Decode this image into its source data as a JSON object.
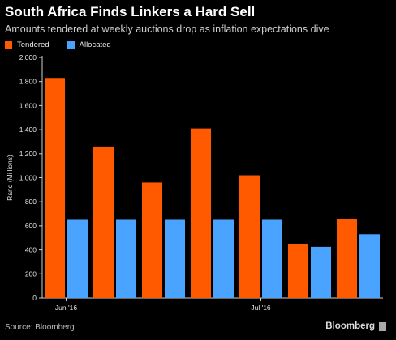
{
  "chart_data": {
    "type": "bar",
    "title": "South Africa Finds Linkers a Hard Sell",
    "subtitle": "Amounts tendered at weekly auctions drop as inflation expectations dive",
    "ylabel": "Rand (Millions)",
    "xlabel": "",
    "ylim": [
      0,
      2000
    ],
    "yticks": [
      "0",
      "200",
      "400",
      "600",
      "800",
      "1,000",
      "1,200",
      "1,400",
      "1,600",
      "1,800",
      "2,000"
    ],
    "ytick_values": [
      0,
      200,
      400,
      600,
      800,
      1000,
      1200,
      1400,
      1600,
      1800,
      2000
    ],
    "x_tick_labels": [
      {
        "label": "Jun '16",
        "index": 0
      },
      {
        "label": "Jul '16",
        "index": 4
      }
    ],
    "grid": false,
    "legend_position": "top-left",
    "series": [
      {
        "name": "Tendered",
        "color": "#ff5a00",
        "values": [
          1830,
          1260,
          960,
          1410,
          1020,
          450,
          655
        ]
      },
      {
        "name": "Allocated",
        "color": "#4aa3ff",
        "values": [
          650,
          650,
          650,
          650,
          650,
          425,
          530
        ]
      }
    ]
  },
  "footer": {
    "source": "Source: Bloomberg",
    "brand": "Bloomberg"
  }
}
